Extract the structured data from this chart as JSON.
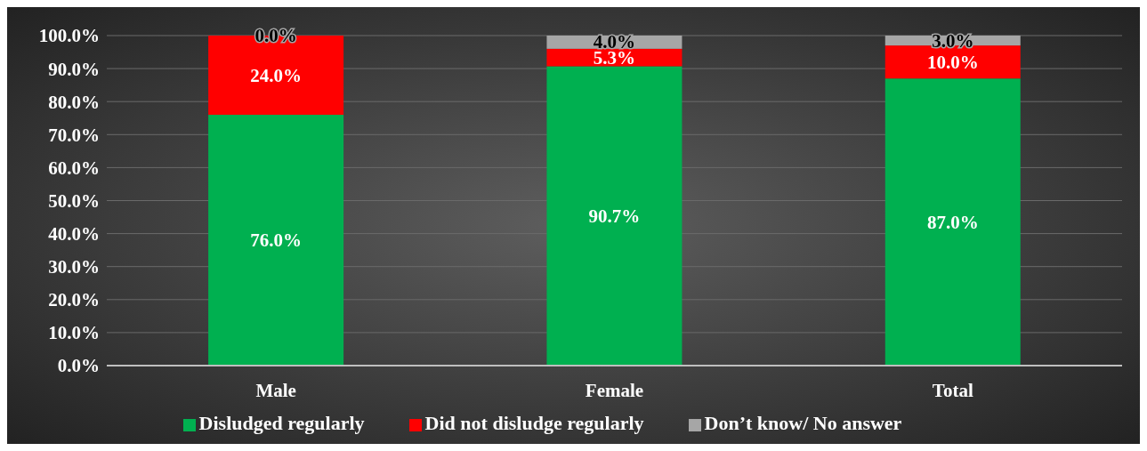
{
  "chart_data": {
    "type": "bar",
    "stacked": true,
    "categories": [
      "Male",
      "Female",
      "Total"
    ],
    "series": [
      {
        "name": "Disludged regularly",
        "color": "#00b050",
        "values": [
          76.0,
          90.7,
          87.0
        ],
        "value_labels": [
          "76.0%",
          "90.7%",
          "87.0%"
        ]
      },
      {
        "name": "Did not disludge regularly",
        "color": "#ff0000",
        "values": [
          24.0,
          5.3,
          10.0
        ],
        "value_labels": [
          "24.0%",
          "5.3%",
          "10.0%"
        ]
      },
      {
        "name": "Don’t know/ No answer",
        "color": "#a6a6a6",
        "values": [
          0.0,
          4.0,
          3.0
        ],
        "value_labels": [
          "0.0%",
          "4.0%",
          "3.0%"
        ]
      }
    ],
    "ylim": [
      0,
      100
    ],
    "yticks": [
      {
        "value": 0,
        "label": "0.0%"
      },
      {
        "value": 10,
        "label": "10.0%"
      },
      {
        "value": 20,
        "label": "20.0%"
      },
      {
        "value": 30,
        "label": "30.0%"
      },
      {
        "value": 40,
        "label": "40.0%"
      },
      {
        "value": 50,
        "label": "50.0%"
      },
      {
        "value": 60,
        "label": "60.0%"
      },
      {
        "value": 70,
        "label": "70.0%"
      },
      {
        "value": 80,
        "label": "80.0%"
      },
      {
        "value": 90,
        "label": "90.0%"
      },
      {
        "value": 100,
        "label": "100.0%"
      }
    ],
    "grid": "y",
    "legend": "bottom"
  }
}
